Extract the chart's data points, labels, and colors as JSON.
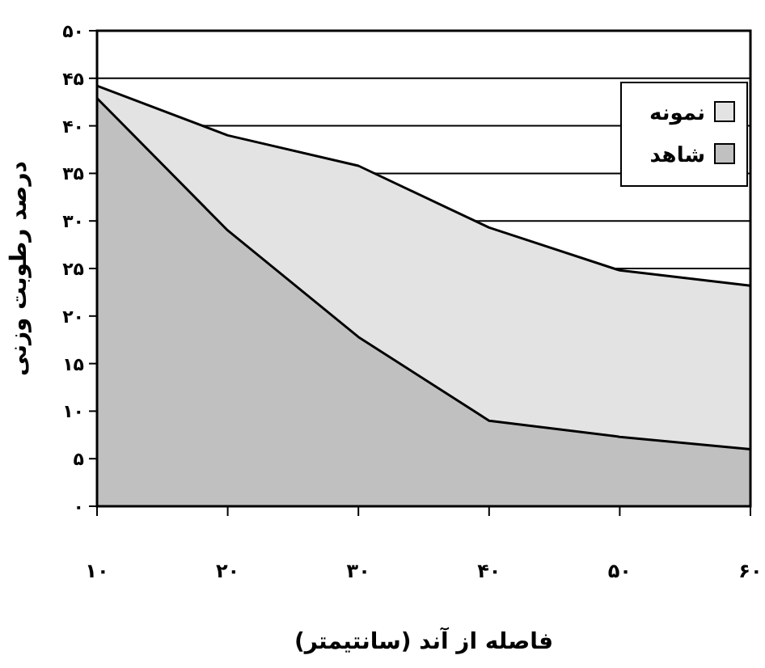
{
  "chart_data": {
    "type": "area",
    "xlabel": "فاصله از آند (سانتیمتر)",
    "ylabel": "درصد رطوبت وزنی",
    "x": [
      10,
      20,
      30,
      40,
      50,
      60
    ],
    "series": [
      {
        "name": "نمونه",
        "color": "#e3e3e3",
        "values": [
          44.2,
          39.0,
          35.8,
          29.3,
          24.8,
          23.2
        ]
      },
      {
        "name": "شاهد",
        "color": "#c0c0c0",
        "values": [
          42.9,
          29.0,
          17.8,
          9.0,
          7.3,
          6.0
        ]
      }
    ],
    "xlim": [
      10,
      60
    ],
    "ylim": [
      0,
      50
    ],
    "xticks": [
      {
        "value": 10,
        "label": "۱۰"
      },
      {
        "value": 20,
        "label": "۲۰"
      },
      {
        "value": 30,
        "label": "۳۰"
      },
      {
        "value": 40,
        "label": "۴۰"
      },
      {
        "value": 50,
        "label": "۵۰"
      },
      {
        "value": 60,
        "label": "۶۰"
      }
    ],
    "yticks": [
      {
        "value": 0,
        "label": "۰"
      },
      {
        "value": 5,
        "label": "۵"
      },
      {
        "value": 10,
        "label": "۱۰"
      },
      {
        "value": 15,
        "label": "۱۵"
      },
      {
        "value": 20,
        "label": "۲۰"
      },
      {
        "value": 25,
        "label": "۲۵"
      },
      {
        "value": 30,
        "label": "۳۰"
      },
      {
        "value": 35,
        "label": "۳۵"
      },
      {
        "value": 40,
        "label": "۴۰"
      },
      {
        "value": 45,
        "label": "۴۵"
      },
      {
        "value": 50,
        "label": "۵۰"
      }
    ],
    "grid": "y",
    "legend": "top right",
    "marker": "none",
    "line_style": "solid"
  }
}
